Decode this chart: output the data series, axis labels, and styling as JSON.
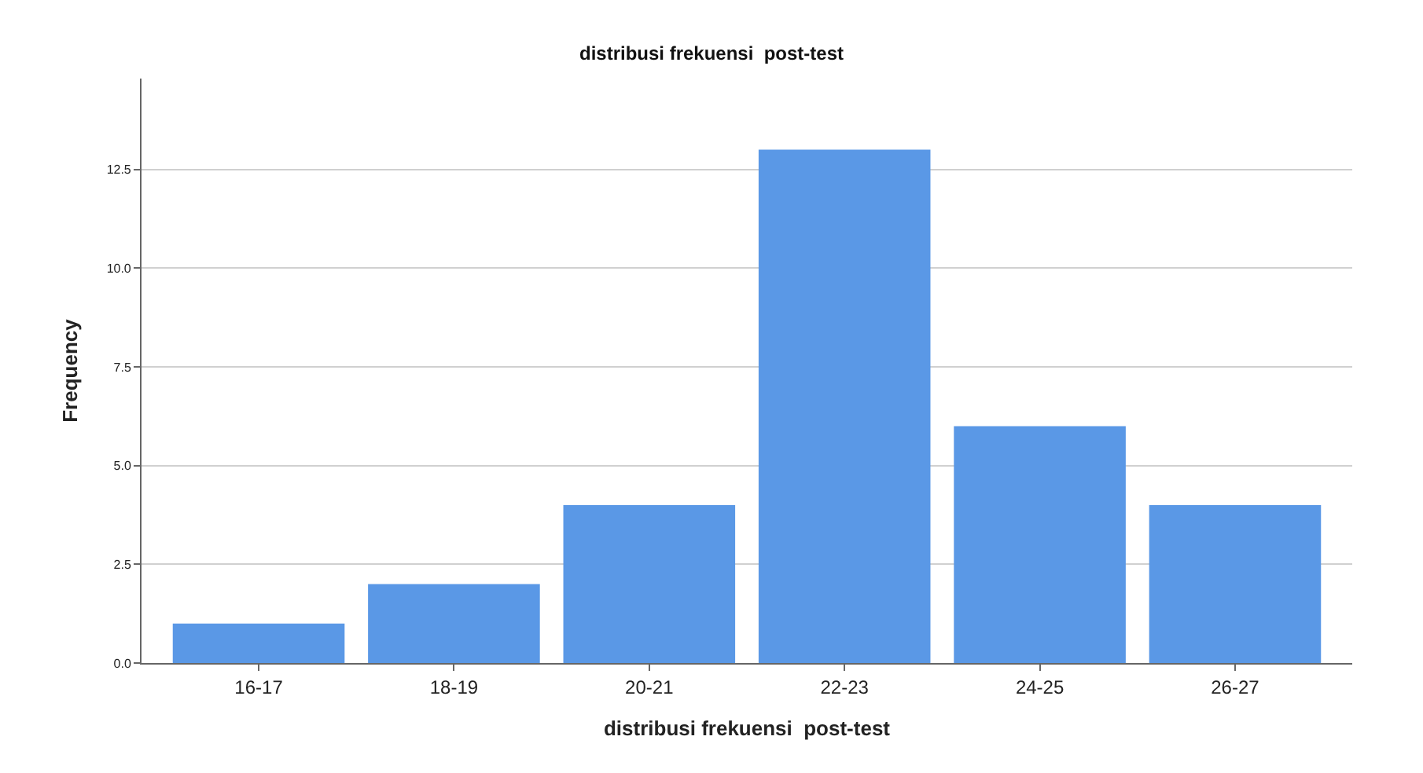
{
  "chart_data": {
    "type": "bar",
    "title": "distribusi frekuensi  post-test",
    "xlabel": "distribusi frekuensi  post-test",
    "ylabel": "Frequency",
    "categories": [
      "16-17",
      "18-19",
      "20-21",
      "22-23",
      "24-25",
      "26-27"
    ],
    "values": [
      1,
      2,
      4,
      13,
      6,
      4
    ],
    "color": "#5a98e6",
    "ylim": [
      0,
      14.8
    ],
    "yticks": [
      {
        "value": 0,
        "label": "0.0"
      },
      {
        "value": 2.5,
        "label": "2.5"
      },
      {
        "value": 5,
        "label": "5.0"
      },
      {
        "value": 7.5,
        "label": "7.5"
      },
      {
        "value": 10,
        "label": "10.0"
      },
      {
        "value": 12.5,
        "label": "12.5"
      }
    ],
    "grid": "y"
  }
}
